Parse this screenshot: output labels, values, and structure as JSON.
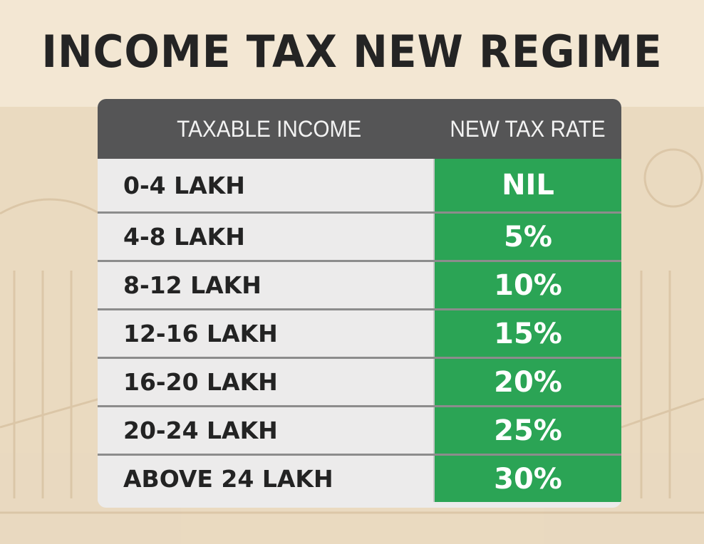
{
  "title": "INCOME TAX NEW REGIME",
  "table": {
    "headers": [
      "TAXABLE INCOME",
      "NEW TAX RATE"
    ],
    "rows": [
      {
        "income": "0-4 LAKH",
        "rate": "NIL"
      },
      {
        "income": "4-8 LAKH",
        "rate": "5%"
      },
      {
        "income": "8-12 LAKH",
        "rate": "10%"
      },
      {
        "income": "12-16 LAKH",
        "rate": "15%"
      },
      {
        "income": "16-20 LAKH",
        "rate": "20%"
      },
      {
        "income": "20-24 LAKH",
        "rate": "25%"
      },
      {
        "income": "ABOVE 24 LAKH",
        "rate": "30%"
      }
    ]
  },
  "colors": {
    "background": "#f3e7d3",
    "header": "#555556",
    "rate_cell": "#2ba455",
    "income_cell": "#ecebeb",
    "title_text": "#242424"
  }
}
